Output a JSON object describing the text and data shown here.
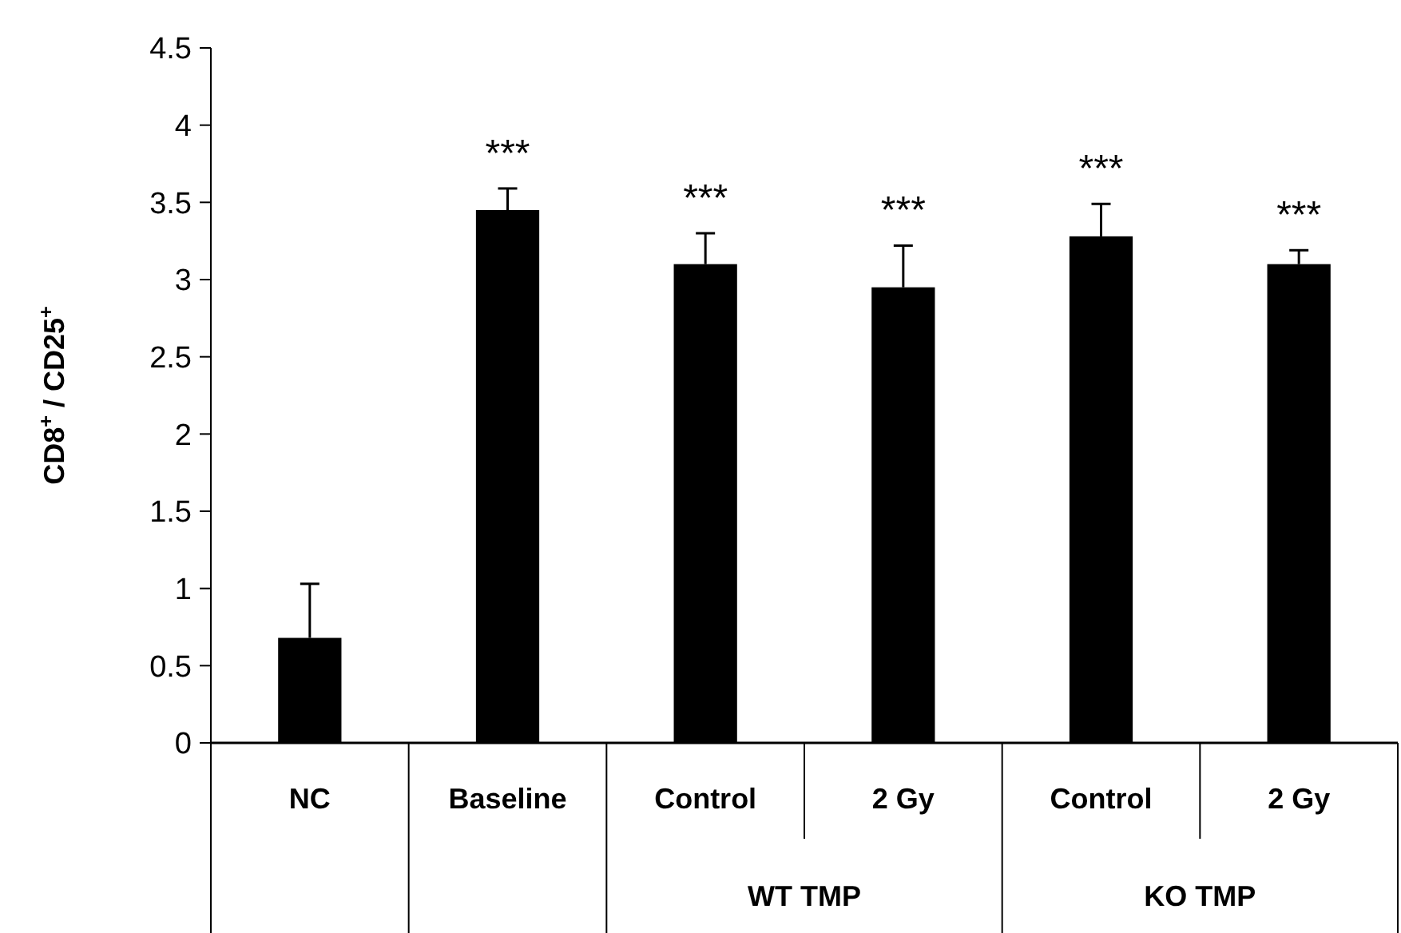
{
  "chart_data": {
    "type": "bar",
    "ylabel": "CD8$^{+}$ / CD25$^{+}$",
    "categories": [
      "NC",
      "Baseline",
      "Control",
      "2 Gy",
      "Control",
      "2 Gy"
    ],
    "values": [
      0.68,
      3.45,
      3.1,
      2.95,
      3.28,
      3.1
    ],
    "errors": [
      [
        0.68,
        1.03
      ],
      [
        3.45,
        3.59
      ],
      [
        3.1,
        3.3
      ],
      [
        2.95,
        3.22
      ],
      [
        3.28,
        3.49
      ],
      [
        3.1,
        3.19
      ]
    ],
    "value_labels": [
      null,
      "***",
      "***",
      "***",
      "***",
      "***"
    ],
    "color": "#000000",
    "ylim": [
      0,
      4.5
    ],
    "yticks": [
      0,
      0.5,
      1,
      1.5,
      2,
      2.5,
      3,
      3.5,
      4,
      4.5
    ],
    "annotations": [
      "WT TMP",
      "KO TMP"
    ],
    "grid": false
  }
}
